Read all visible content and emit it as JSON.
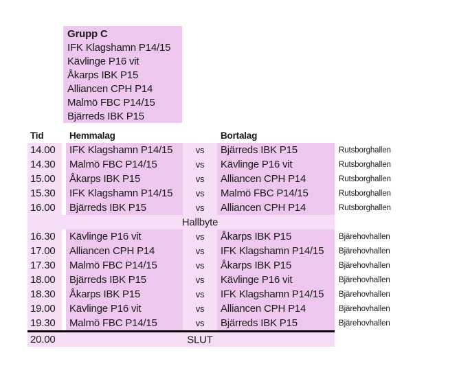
{
  "colors": {
    "cell_dark": "#EDC7ED",
    "cell_light": "#F7DEF7",
    "text": "#1a1a1a",
    "divider": "#000000"
  },
  "group_box": {
    "title": "Grupp C",
    "teams": [
      "IFK Klagshamn P14/15",
      "Kävlinge P16 vit",
      "Åkarps IBK P15",
      "Alliancen CPH P14",
      "Malmö FBC P14/15",
      "Bjärreds IBK P15"
    ]
  },
  "schedule": {
    "headers": {
      "time": "Tid",
      "home": "Hemmalag",
      "away": "Bortalag"
    },
    "vs_label": "vs",
    "first_half": [
      {
        "time": "14.00",
        "home": "IFK Klagshamn P14/15",
        "away": "Bjärreds IBK P15",
        "venue": "Rutsborghallen"
      },
      {
        "time": "14.30",
        "home": "Malmö FBC P14/15",
        "away": "Kävlinge P16 vit",
        "venue": "Rutsborghallen"
      },
      {
        "time": "15.00",
        "home": "Åkarps IBK P15",
        "away": "Alliancen CPH P14",
        "venue": "Rutsborghallen"
      },
      {
        "time": "15.30",
        "home": "IFK Klagshamn P14/15",
        "away": "Malmö FBC P14/15",
        "venue": "Rutsborghallen"
      },
      {
        "time": "16.00",
        "home": "Bjärreds IBK P15",
        "away": "Alliancen CPH P14",
        "venue": "Rutsborghallen"
      }
    ],
    "break_label": "Hallbyte",
    "second_half": [
      {
        "time": "16.30",
        "home": "Kävlinge P16 vit",
        "away": "Åkarps IBK P15",
        "venue": "Bjärehovhallen"
      },
      {
        "time": "17.00",
        "home": "Alliancen CPH P14",
        "away": "IFK Klagshamn P14/15",
        "venue": "Bjärehovhallen"
      },
      {
        "time": "17.30",
        "home": "Malmö FBC P14/15",
        "away": "Åkarps IBK P15",
        "venue": "Bjärehovhallen"
      },
      {
        "time": "18.00",
        "home": "Bjärreds IBK P15",
        "away": "Kävlinge P16 vit",
        "venue": "Bjärehovhallen"
      },
      {
        "time": "18.30",
        "home": "Åkarps IBK P15",
        "away": "IFK Klagshamn P14/15",
        "venue": "Bjärehovhallen"
      },
      {
        "time": "19.00",
        "home": "Kävlinge P16 vit",
        "away": "Alliancen CPH P14",
        "venue": "Bjärehovhallen"
      },
      {
        "time": "19.30",
        "home": "Malmö FBC P14/15",
        "away": "Bjärreds IBK P15",
        "venue": "Bjärehovhallen"
      }
    ],
    "end_row": {
      "time": "20.00",
      "label": "SLUT"
    }
  }
}
